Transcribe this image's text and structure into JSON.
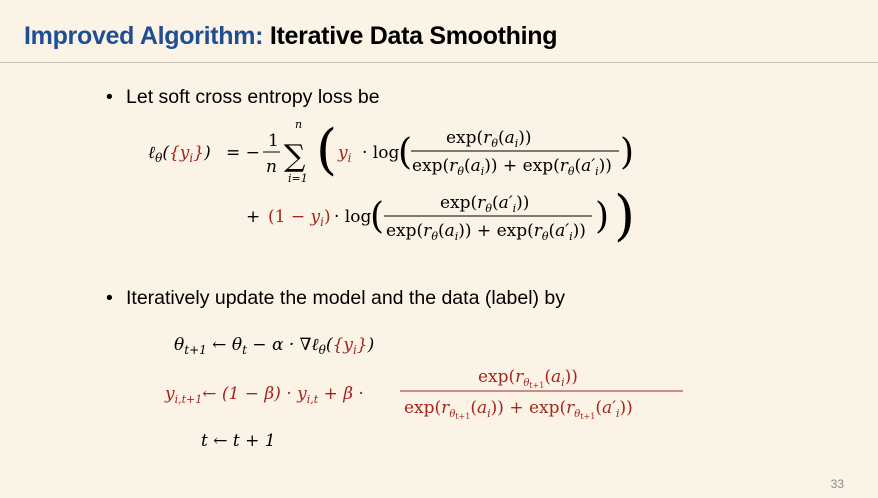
{
  "slide": {
    "title_accent": "Improved Algorithm:",
    "title_rest": "Iterative Data Smoothing",
    "page_number": "33"
  },
  "bullets": [
    {
      "text": "Let soft cross entropy loss be"
    },
    {
      "text": "Iteratively update the model and the data (label) by"
    }
  ],
  "colors": {
    "title_accent": "#1f4f92",
    "math_highlight": "#a3261e",
    "background": "#faf3e6"
  },
  "equations": {
    "loss": {
      "lhs_prefix": "ℓ",
      "lhs_sub": "θ",
      "lhs_set": "({y",
      "lhs_set_sub": "i",
      "lhs_set_close": "})",
      "eq_minus": "= −",
      "frac_num": "1",
      "frac_den": "n",
      "sum_top": "n",
      "sum_bottom": "i=1",
      "term1_label": "y",
      "term1_label_sub": "i",
      "log": "· log",
      "term1_num": "exp(r_θ(a_i))",
      "term1_den": "exp(r_θ(a_i)) + exp(r_θ(a′_i))",
      "term2_label": "+ (1 − y",
      "term2_label_sub": "i",
      "term2_label_close": ")",
      "term2_num": "exp(r_θ(a′_i))",
      "term2_den": "exp(r_θ(a_i)) + exp(r_θ(a′_i))"
    },
    "update_theta": "θ_{t+1} ← θ_t − α · ∇ℓ_θ({y_i})",
    "update_y_lhs": "y_{i,t+1}← (1 − β) · y_{i,t} + β ·",
    "update_y_num": "exp(r_{θ_{t+1}}(a_i))",
    "update_y_den": "exp(r_{θ_{t+1}}(a_i)) + exp(r_{θ_{t+1}}(a′_i))",
    "update_t": "t ← t + 1"
  }
}
